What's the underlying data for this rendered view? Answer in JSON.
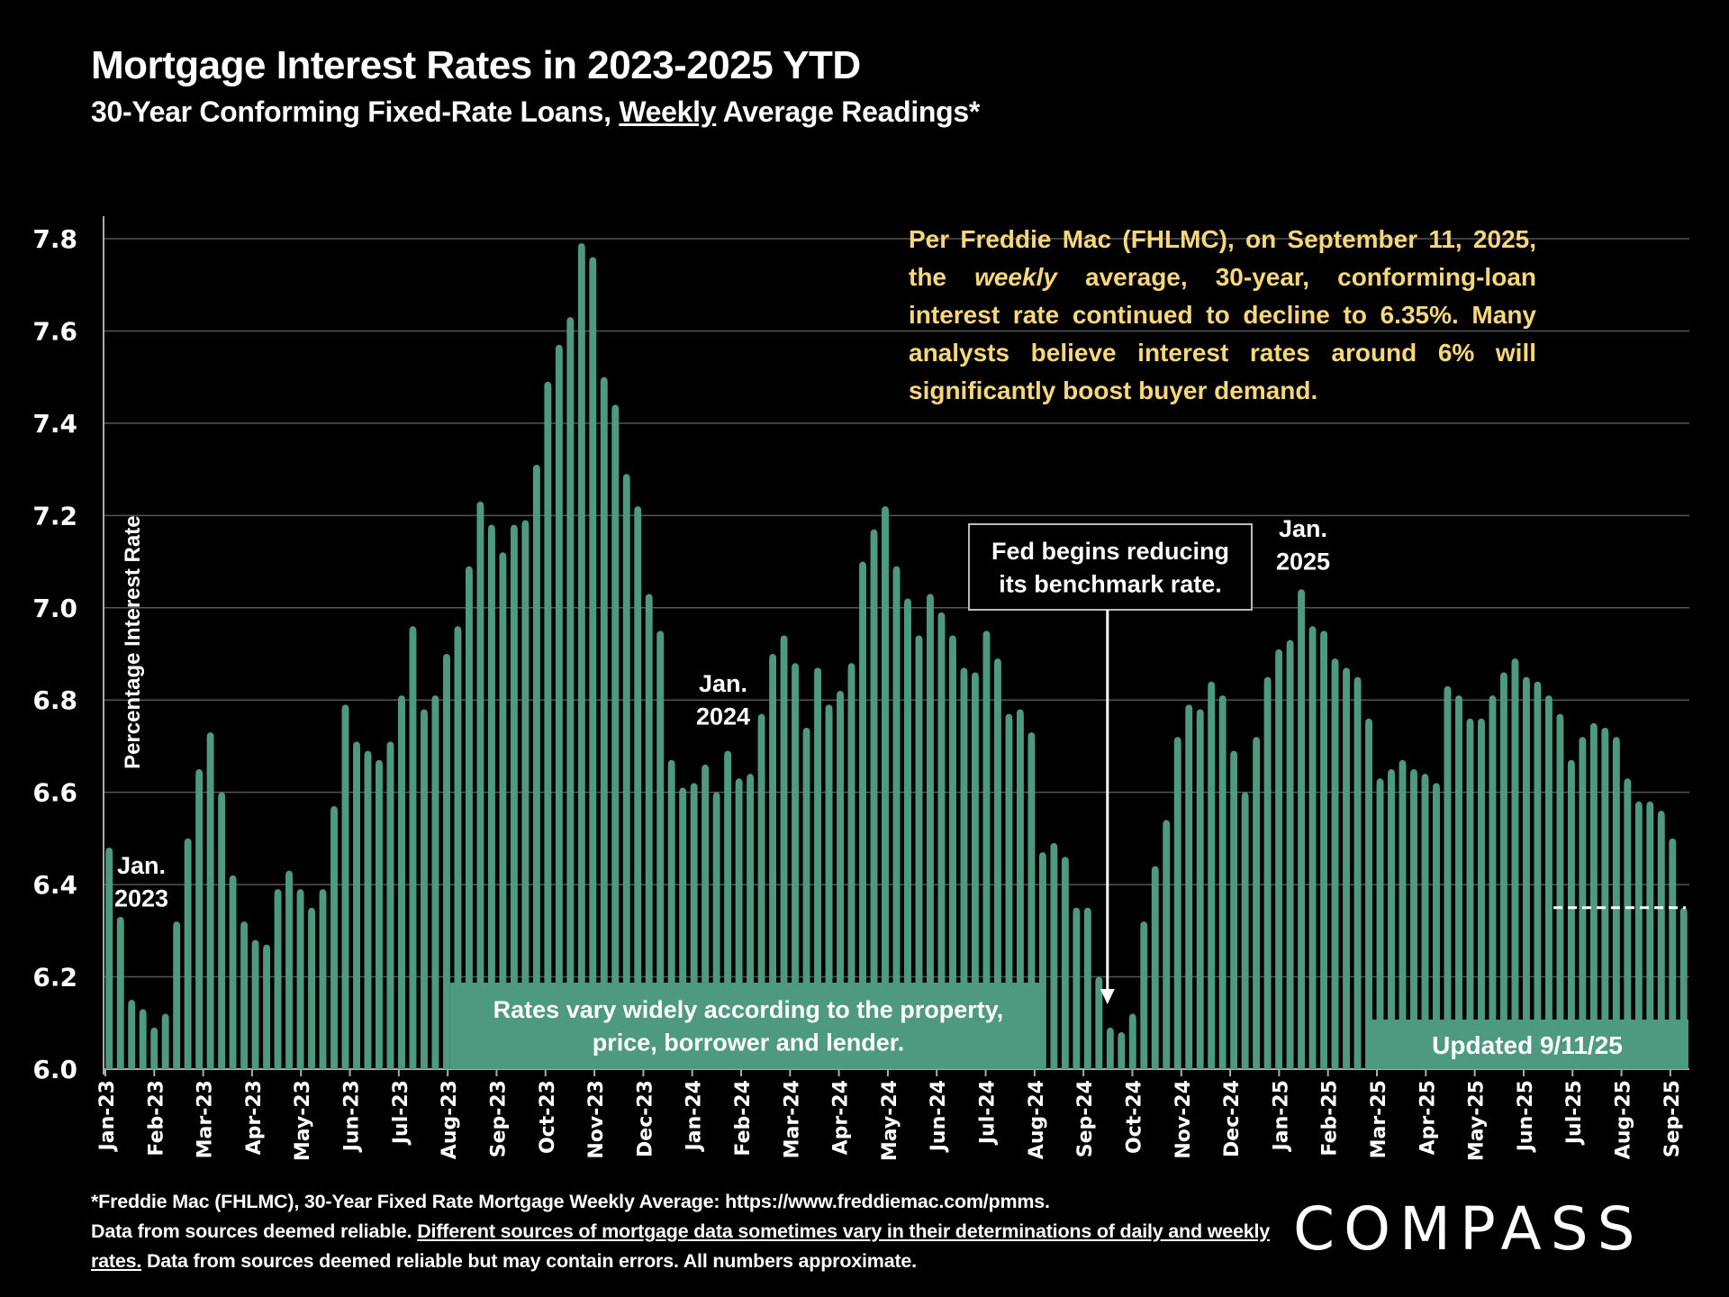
{
  "header": {
    "title": "Mortgage Interest Rates in 2023-2025 YTD",
    "subtitle_pre": "30-Year Conforming Fixed-Rate Loans, ",
    "subtitle_underlined": "Weekly",
    "subtitle_post": " Average Readings*"
  },
  "note": {
    "part1": "Per Freddie Mac (FHLMC), on September 11, 2025, the ",
    "italic": "weekly",
    "part2": " average, 30-year, conforming-loan interest rate continued to decline to 6.35%. Many analysts believe interest rates around 6% will significantly boost buyer demand."
  },
  "footer": {
    "line1": "*Freddie Mac (FHLMC), 30-Year Fixed Rate Mortgage Weekly Average:  https://www.freddiemac.com/pmms.",
    "line2_plain": "Data from sources deemed reliable. ",
    "line2_underlined": "Different sources of mortgage data sometimes vary in their determinations of daily and weekly rates.",
    "line3_plain": " Data from sources deemed reliable but may contain errors. All numbers approximate."
  },
  "logo": "COMPASS",
  "colors": {
    "bar": "#4e9a80",
    "note_text": "#f6d77a",
    "background": "#000000",
    "grid": "#555555"
  },
  "chart_data": {
    "type": "bar",
    "title": "Mortgage Interest Rates in 2023-2025 YTD",
    "subtitle": "30-Year Conforming Fixed-Rate Loans, Weekly Average Readings*",
    "xlabel": "",
    "ylabel": "Percentage Interest  Rate",
    "ylim": [
      6.0,
      7.8
    ],
    "yticks": [
      "6.0",
      "6.2",
      "6.4",
      "6.6",
      "6.8",
      "7.0",
      "7.2",
      "7.4",
      "7.6",
      "7.8"
    ],
    "grid": true,
    "month_labels": [
      "Jan-23",
      "Feb-23",
      "Mar-23",
      "Apr-23",
      "May-23",
      "Jun-23",
      "Jul-23",
      "Aug-23",
      "Sep-23",
      "Oct-23",
      "Nov-23",
      "Dec-23",
      "Jan-24",
      "Feb-24",
      "Mar-24",
      "Apr-24",
      "May-24",
      "Jun-24",
      "Jul-24",
      "Aug-24",
      "Sep-24",
      "Oct-24",
      "Nov-24",
      "Dec-24",
      "Jan-25",
      "Feb-25",
      "Mar-25",
      "Apr-25",
      "May-25",
      "Jun-25",
      "Jul-25",
      "Aug-25",
      "Sep-25"
    ],
    "series": [
      {
        "name": "30-Year Fixed Rate Weekly Average",
        "values_2023": [
          6.48,
          6.33,
          6.15,
          6.13,
          6.09,
          6.12,
          6.32,
          6.5,
          6.65,
          6.73,
          6.6,
          6.42,
          6.32,
          6.28,
          6.27,
          6.39,
          6.43,
          6.39,
          6.35,
          6.39,
          6.57,
          6.79,
          6.71,
          6.69,
          6.67,
          6.71,
          6.81,
          6.96,
          6.78,
          6.81,
          6.9,
          6.96,
          7.09,
          7.23,
          7.18,
          7.12,
          7.18,
          7.19,
          7.31,
          7.49,
          7.57,
          7.63,
          7.79,
          7.76,
          7.5,
          7.44,
          7.29,
          7.22,
          7.03,
          6.95,
          6.67,
          6.61
        ],
        "values_2024": [
          6.62,
          6.66,
          6.6,
          6.69,
          6.63,
          6.64,
          6.77,
          6.9,
          6.94,
          6.88,
          6.74,
          6.87,
          6.79,
          6.82,
          6.88,
          7.1,
          7.17,
          7.22,
          7.09,
          7.02,
          6.94,
          7.03,
          6.99,
          6.94,
          6.87,
          6.86,
          6.95,
          6.89,
          6.77,
          6.78,
          6.73,
          6.47,
          6.49,
          6.46,
          6.35,
          6.35,
          6.2,
          6.09,
          6.08,
          6.12,
          6.32,
          6.44,
          6.54,
          6.72,
          6.79,
          6.78,
          6.84,
          6.81,
          6.69,
          6.6,
          6.72,
          6.85
        ],
        "values_2025": [
          6.91,
          6.93,
          7.04,
          6.96,
          6.95,
          6.89,
          6.87,
          6.85,
          6.76,
          6.63,
          6.65,
          6.67,
          6.65,
          6.64,
          6.62,
          6.83,
          6.81,
          6.76,
          6.76,
          6.81,
          6.86,
          6.89,
          6.85,
          6.84,
          6.81,
          6.77,
          6.67,
          6.72,
          6.75,
          6.74,
          6.72,
          6.63,
          6.58,
          6.58,
          6.56,
          6.5,
          6.35
        ]
      }
    ],
    "annotations": [
      {
        "text_line1": "Jan.",
        "text_line2": "2023",
        "week_index": 1
      },
      {
        "text_line1": "Jan.",
        "text_line2": "2024",
        "week_index": 52
      },
      {
        "text_line1": "Jan.",
        "text_line2": "2025",
        "week_index": 104
      },
      {
        "text_line1": "Fed begins reducing",
        "text_line2": "its benchmark rate.",
        "arrow_to_week_index": 89
      },
      {
        "text_line1": "Rates vary widely according to the property,",
        "text_line2": "price, borrower and lender."
      },
      {
        "text_line1": "Updated 9/11/25"
      },
      {
        "reference_line_value": 6.35,
        "style": "dashed"
      }
    ]
  }
}
